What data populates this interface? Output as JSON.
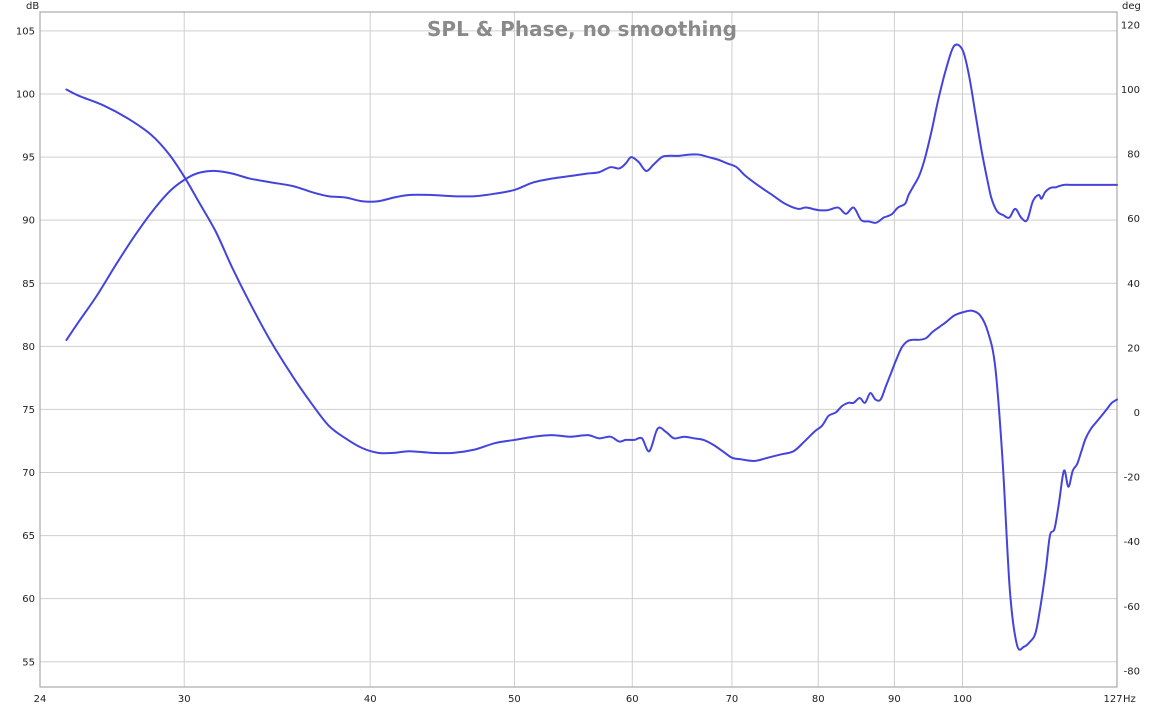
{
  "chart_data": {
    "type": "line",
    "title": "SPL & Phase, no smoothing",
    "x_unit": "Hz",
    "y_unit_left": "dB",
    "y_unit_right": "deg",
    "xscale": "log",
    "xlim": [
      24,
      127
    ],
    "ylim_left": [
      53,
      106.5
    ],
    "ylim_right": [
      -85,
      124
    ],
    "grid": true,
    "line_color": "#4444dd",
    "x_ticks": [
      "24",
      "30",
      "40",
      "50",
      "60",
      "70",
      "80",
      "90",
      "100",
      "127"
    ],
    "x_tick_values": [
      24,
      30,
      40,
      50,
      60,
      70,
      80,
      90,
      100,
      127
    ],
    "y_ticks_left": [
      "105",
      "100",
      "95",
      "90",
      "85",
      "80",
      "75",
      "70",
      "65",
      "60",
      "55"
    ],
    "y_tick_values_left": [
      105,
      100,
      95,
      90,
      85,
      80,
      75,
      70,
      65,
      60,
      55
    ],
    "y_ticks_right": [
      "120",
      "100",
      "80",
      "60",
      "40",
      "20",
      "0",
      "-20",
      "-40",
      "-60",
      "-80"
    ],
    "y_tick_values_right": [
      120,
      100,
      80,
      60,
      40,
      20,
      0,
      -20,
      -40,
      -60,
      -80
    ],
    "series": [
      {
        "axis": "left",
        "x": [
          25.0,
          25.5,
          26.2,
          27.0,
          27.8,
          28.6,
          29.4,
          30.2,
          30.8,
          31.5,
          32.3,
          33.2,
          34.3,
          35.5,
          36.6,
          37.5,
          38.5,
          39.5,
          40.5,
          41.5,
          42.5,
          44.0,
          45.5,
          47.0,
          48.5,
          50.0,
          51.5,
          53.0,
          54.5,
          56.0,
          57.0,
          58.0,
          58.8,
          59.4,
          59.9,
          60.6,
          61.3,
          62.0,
          62.8,
          63.5,
          64.5,
          65.5,
          66.5,
          67.5,
          68.5,
          69.5,
          70.5,
          71.5,
          73.0,
          74.5,
          76.0,
          77.5,
          78.5,
          80.0,
          81.2,
          82.5,
          83.5,
          84.5,
          85.5,
          86.5,
          87.5,
          88.5,
          89.0,
          89.7,
          90.5,
          91.5,
          92.0,
          92.7,
          93.5,
          94.3,
          95.3,
          96.3,
          97.5,
          98.7,
          100.0,
          101.0,
          102.0,
          103.0,
          104.0,
          104.6,
          105.5,
          106.5,
          107.5,
          108.5,
          109.5,
          110.5,
          111.5,
          112.5,
          113.0,
          113.6,
          114.3,
          114.9,
          115.5,
          116.1,
          117.0,
          118.0,
          119.0,
          120.0,
          121.0,
          122.5,
          124.0,
          125.5,
          127.0
        ],
        "values": [
          80.5,
          82.0,
          84.0,
          86.5,
          88.8,
          90.8,
          92.4,
          93.4,
          93.8,
          93.9,
          93.7,
          93.3,
          93.0,
          92.7,
          92.2,
          91.9,
          91.8,
          91.5,
          91.5,
          91.8,
          92.0,
          92.0,
          91.9,
          91.9,
          92.1,
          92.4,
          93.0,
          93.3,
          93.5,
          93.7,
          93.8,
          94.2,
          94.1,
          94.5,
          95.0,
          94.6,
          93.9,
          94.4,
          95.0,
          95.1,
          95.1,
          95.2,
          95.2,
          95.0,
          94.8,
          94.5,
          94.2,
          93.5,
          92.7,
          92.0,
          91.3,
          90.9,
          91.0,
          90.8,
          90.8,
          91.0,
          90.5,
          91.0,
          90.0,
          89.9,
          89.8,
          90.2,
          90.3,
          90.5,
          91.0,
          91.3,
          92.0,
          92.7,
          93.5,
          94.8,
          97.0,
          99.5,
          102.0,
          103.8,
          103.5,
          101.5,
          98.5,
          95.5,
          93.0,
          91.7,
          90.7,
          90.4,
          90.2,
          90.9,
          90.2,
          90.0,
          91.5,
          92.0,
          91.7,
          92.2,
          92.5,
          92.6,
          92.6,
          92.7,
          92.8,
          92.8,
          92.8,
          92.8,
          92.8,
          92.8,
          92.8,
          92.8,
          92.8
        ]
      },
      {
        "axis": "right",
        "x": [
          25.0,
          25.5,
          26.5,
          27.5,
          28.5,
          29.3,
          30.0,
          30.7,
          31.5,
          32.3,
          33.2,
          34.3,
          35.5,
          36.5,
          37.5,
          38.5,
          39.5,
          40.5,
          41.5,
          42.5,
          44.0,
          45.5,
          47.0,
          48.5,
          50.0,
          51.5,
          53.0,
          54.5,
          56.0,
          57.0,
          58.0,
          58.8,
          59.4,
          60.2,
          60.9,
          61.6,
          62.4,
          63.2,
          64.0,
          65.0,
          66.0,
          67.0,
          68.0,
          69.0,
          70.0,
          71.0,
          72.5,
          74.0,
          75.5,
          77.0,
          78.3,
          79.5,
          80.5,
          81.3,
          82.2,
          83.0,
          83.8,
          84.5,
          85.3,
          86.0,
          86.7,
          87.4,
          88.1,
          88.8,
          89.5,
          90.2,
          91.0,
          91.8,
          92.6,
          93.5,
          94.5,
          95.5,
          96.5,
          97.5,
          98.7,
          100.0,
          101.5,
          102.8,
          104.0,
          105.2,
          106.4,
          107.6,
          108.8,
          110.0,
          111.0,
          112.0,
          113.0,
          113.8,
          114.5,
          115.3,
          116.1,
          117.0,
          117.8,
          118.6,
          119.4,
          120.2,
          121.0,
          122.0,
          123.0,
          124.0,
          125.0,
          126.0,
          127.0
        ],
        "values": [
          100.0,
          98.0,
          95.0,
          91.0,
          86.0,
          80.0,
          73.0,
          65.0,
          56.0,
          45.0,
          34.0,
          22.0,
          11.0,
          3.0,
          -4.0,
          -8.0,
          -11.0,
          -12.5,
          -12.5,
          -12.0,
          -12.5,
          -12.5,
          -11.5,
          -9.5,
          -8.5,
          -7.5,
          -7.0,
          -7.5,
          -7.0,
          -8.0,
          -7.5,
          -9.0,
          -8.5,
          -8.5,
          -8.0,
          -12.0,
          -5.0,
          -6.0,
          -8.0,
          -7.5,
          -8.0,
          -8.5,
          -10.0,
          -12.0,
          -14.0,
          -14.5,
          -15.0,
          -14.0,
          -13.0,
          -12.0,
          -9.0,
          -6.0,
          -4.0,
          -1.0,
          0.0,
          2.0,
          3.0,
          3.0,
          4.5,
          3.0,
          6.0,
          4.0,
          4.0,
          8.0,
          12.0,
          16.0,
          20.0,
          22.0,
          22.5,
          22.5,
          23.0,
          25.0,
          26.5,
          28.0,
          30.0,
          31.0,
          31.5,
          30.0,
          25.0,
          14.0,
          -15.0,
          -55.0,
          -72.0,
          -72.5,
          -71.0,
          -68.0,
          -58.0,
          -48.0,
          -38.0,
          -36.0,
          -28.0,
          -18.0,
          -23.0,
          -18.0,
          -16.0,
          -12.0,
          -8.0,
          -5.0,
          -3.0,
          -1.0,
          1.0,
          3.0,
          4.0
        ]
      }
    ]
  }
}
